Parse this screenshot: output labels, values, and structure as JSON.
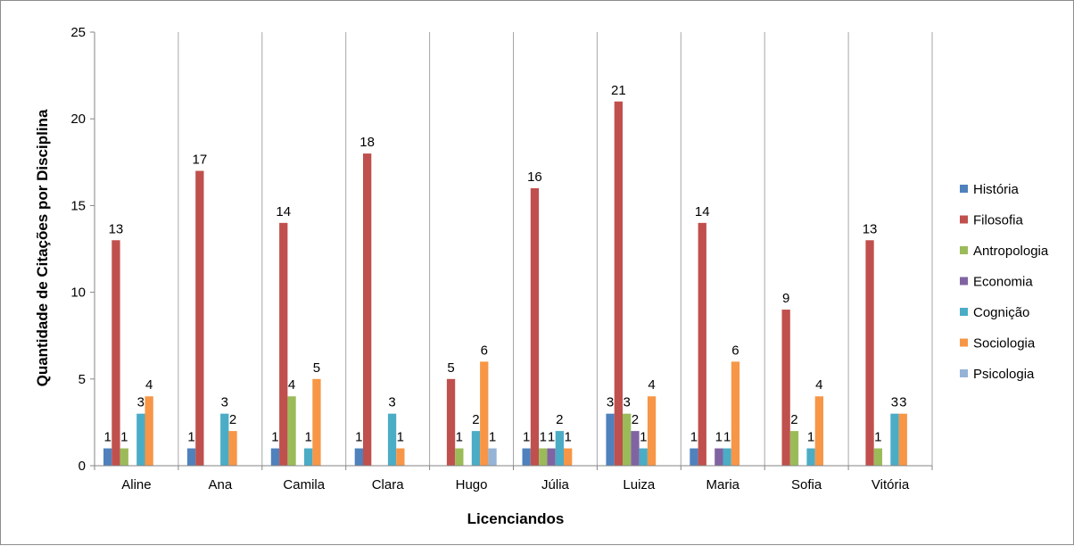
{
  "chart_data": {
    "type": "bar",
    "title": "",
    "xlabel": "Licenciandos",
    "ylabel": "Quantidade de Citações por Disciplina",
    "ylim": [
      0,
      25
    ],
    "yticks": [
      0,
      5,
      10,
      15,
      20,
      25
    ],
    "grid": "vertical separators between categories",
    "legend_position": "right",
    "categories": [
      "Aline",
      "Ana",
      "Camila",
      "Clara",
      "Hugo",
      "Júlia",
      "Luiza",
      "Maria",
      "Sofia",
      "Vitória"
    ],
    "series": [
      {
        "name": "História",
        "color": "#4F81BD",
        "values": [
          1,
          1,
          1,
          1,
          null,
          1,
          3,
          1,
          null,
          null
        ]
      },
      {
        "name": "Filosofia",
        "color": "#C0504D",
        "values": [
          13,
          17,
          14,
          18,
          5,
          16,
          21,
          14,
          9,
          13
        ]
      },
      {
        "name": "Antropologia",
        "color": "#9BBB59",
        "values": [
          1,
          null,
          4,
          null,
          1,
          1,
          3,
          null,
          2,
          1
        ]
      },
      {
        "name": "Economia",
        "color": "#8064A2",
        "values": [
          null,
          null,
          null,
          null,
          null,
          1,
          2,
          1,
          null,
          null
        ]
      },
      {
        "name": "Cognição",
        "color": "#4BACC6",
        "values": [
          3,
          3,
          1,
          3,
          2,
          2,
          1,
          1,
          1,
          3
        ]
      },
      {
        "name": "Sociologia",
        "color": "#F79646",
        "values": [
          4,
          2,
          5,
          1,
          6,
          1,
          4,
          6,
          4,
          3
        ]
      },
      {
        "name": "Psicologia",
        "color": "#95B3D7",
        "values": [
          null,
          null,
          null,
          null,
          1,
          null,
          null,
          null,
          null,
          null
        ]
      }
    ]
  }
}
